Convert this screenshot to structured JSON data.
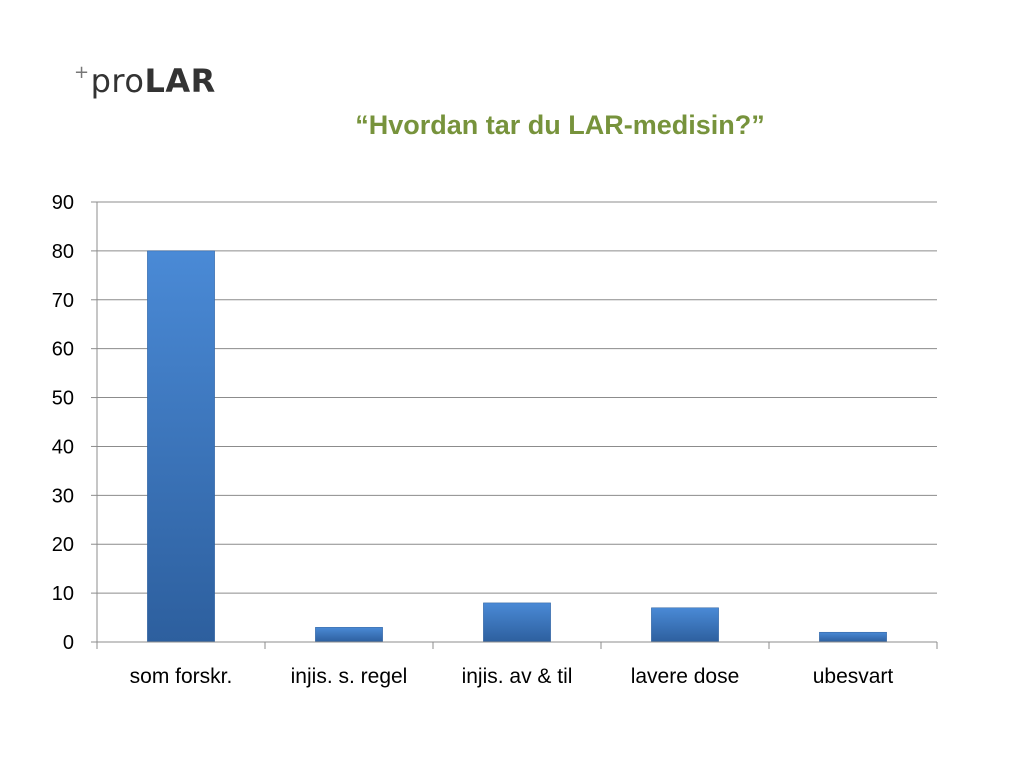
{
  "logo": {
    "plus": "+",
    "pro": "pro",
    "lar": "LAR"
  },
  "colors": {
    "title": "#77933c",
    "bar_top": "#4a8ad6",
    "bar_bottom": "#2d5f9e",
    "grid": "#8c8c8c"
  },
  "chart_data": {
    "type": "bar",
    "title": "“Hvordan tar du LAR-medisin?”",
    "categories": [
      "som forskr.",
      "injis. s. regel",
      "injis. av & til",
      "lavere dose",
      "ubesvart"
    ],
    "values": [
      80,
      3,
      8,
      7,
      2
    ],
    "ylim": [
      0,
      90
    ],
    "yticks": [
      0,
      10,
      20,
      30,
      40,
      50,
      60,
      70,
      80,
      90
    ],
    "xlabel": "",
    "ylabel": "",
    "grid": true,
    "legend": "none"
  }
}
